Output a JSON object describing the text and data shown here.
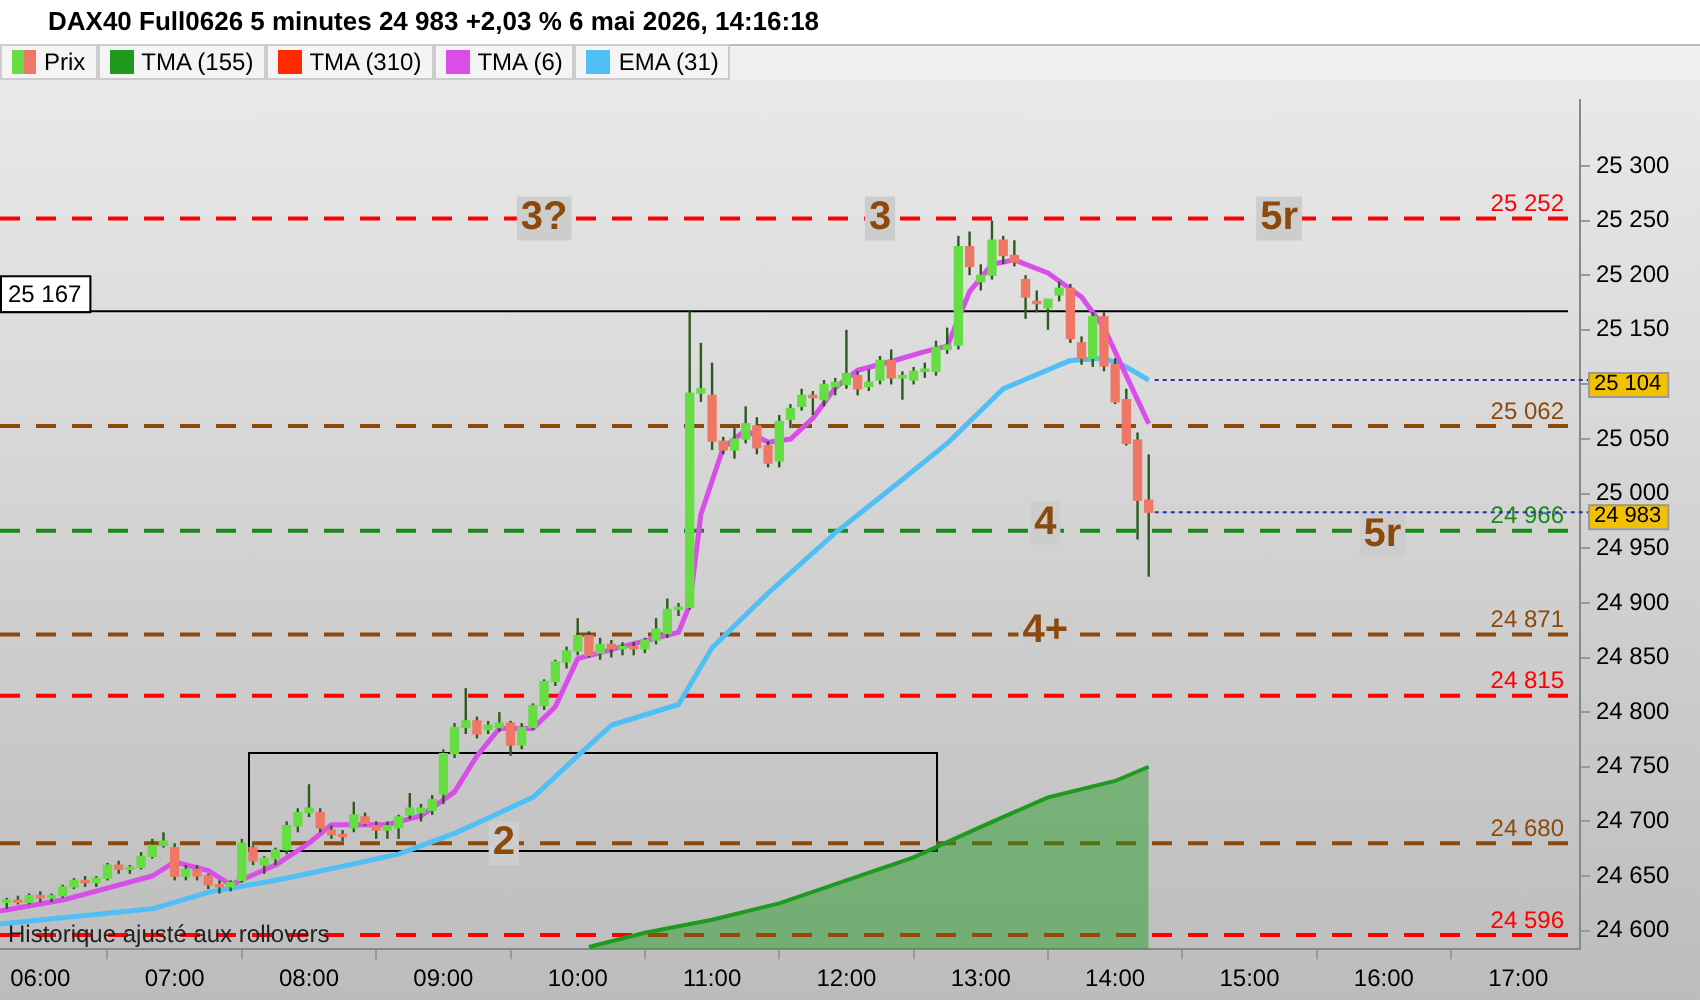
{
  "chart_data": {
    "type": "candlestick",
    "title": "DAX40 Full0626 5 minutes 24 983 +2,03 % 6 mai 2026, 14:16:18",
    "legend": "top left",
    "grid": false,
    "marker": "none",
    "xlim": [
      5.7,
      17.46
    ],
    "xticks": [
      {
        "value": 6,
        "label": "06:00"
      },
      {
        "value": 7,
        "label": "07:00"
      },
      {
        "value": 8,
        "label": "08:00"
      },
      {
        "value": 9,
        "label": "09:00"
      },
      {
        "value": 10,
        "label": "10:00"
      },
      {
        "value": 11,
        "label": "11:00"
      },
      {
        "value": 12,
        "label": "12:00"
      },
      {
        "value": 13,
        "label": "13:00"
      },
      {
        "value": 14,
        "label": "14:00"
      },
      {
        "value": 15,
        "label": "15:00"
      },
      {
        "value": 16,
        "label": "16:00"
      },
      {
        "value": 17,
        "label": "17:00"
      }
    ],
    "ylim": [
      24583,
      25360
    ],
    "yticks": [
      {
        "value": 24600,
        "label": "24 600"
      },
      {
        "value": 24650,
        "label": "24 650"
      },
      {
        "value": 24700,
        "label": "24 700"
      },
      {
        "value": 24750,
        "label": "24 750"
      },
      {
        "value": 24800,
        "label": "24 800"
      },
      {
        "value": 24850,
        "label": "24 850"
      },
      {
        "value": 24900,
        "label": "24 900"
      },
      {
        "value": 24950,
        "label": "24 950"
      },
      {
        "value": 25000,
        "label": "25 000"
      },
      {
        "value": 25050,
        "label": "25 050"
      },
      {
        "value": 25100,
        "label": null
      },
      {
        "value": 25150,
        "label": "25 150"
      },
      {
        "value": 25200,
        "label": "25 200"
      },
      {
        "value": 25250,
        "label": "25 250"
      },
      {
        "value": 25300,
        "label": "25 300"
      }
    ],
    "series": [
      {
        "name": "Prix",
        "type": "candlestick",
        "x": [
          5.75,
          5.8333,
          5.9167,
          6,
          6.0833,
          6.1667,
          6.25,
          6.3333,
          6.4167,
          6.5,
          6.5833,
          6.6667,
          6.75,
          6.8333,
          6.9167,
          7,
          7.0833,
          7.1667,
          7.25,
          7.3333,
          7.4167,
          7.5,
          7.5833,
          7.6667,
          7.75,
          7.8333,
          7.9167,
          8,
          8.0833,
          8.1667,
          8.25,
          8.3333,
          8.4167,
          8.5,
          8.5833,
          8.6667,
          8.75,
          8.8333,
          8.9167,
          9,
          9.0833,
          9.1667,
          9.25,
          9.3333,
          9.4167,
          9.5,
          9.5833,
          9.6667,
          9.75,
          9.8333,
          9.9167,
          10,
          10.0833,
          10.1667,
          10.25,
          10.3333,
          10.4167,
          10.5,
          10.5833,
          10.6667,
          10.75,
          10.8333,
          10.9167,
          11,
          11.0833,
          11.1667,
          11.25,
          11.3333,
          11.4167,
          11.5,
          11.5833,
          11.6667,
          11.75,
          11.8333,
          11.9167,
          12,
          12.0833,
          12.1667,
          12.25,
          12.3333,
          12.4167,
          12.5,
          12.5833,
          12.6667,
          12.75,
          12.8333,
          12.9167,
          13,
          13.0833,
          13.1667,
          13.25,
          13.3333,
          13.4167,
          13.5,
          13.5833,
          13.6667,
          13.75,
          13.8333,
          13.9167,
          14,
          14.0833,
          14.1667,
          14.25
        ],
        "ohlc": [
          [
            24626,
            24630,
            24620,
            24628
          ],
          [
            24628,
            24632,
            24624,
            24626
          ],
          [
            24626,
            24634,
            24624,
            24632
          ],
          [
            24632,
            24636,
            24626,
            24630
          ],
          [
            24630,
            24634,
            24626,
            24632
          ],
          [
            24632,
            24642,
            24630,
            24640
          ],
          [
            24640,
            24648,
            24638,
            24646
          ],
          [
            24646,
            24650,
            24640,
            24644
          ],
          [
            24644,
            24650,
            24640,
            24648
          ],
          [
            24648,
            24662,
            24646,
            24660
          ],
          [
            24660,
            24664,
            24652,
            24656
          ],
          [
            24656,
            24660,
            24652,
            24658
          ],
          [
            24658,
            24672,
            24656,
            24668
          ],
          [
            24668,
            24684,
            24666,
            24678
          ],
          [
            24678,
            24690,
            24676,
            24682
          ],
          [
            24676,
            24680,
            24646,
            24650
          ],
          [
            24650,
            24660,
            24646,
            24656
          ],
          [
            24656,
            24660,
            24646,
            24650
          ],
          [
            24650,
            24652,
            24638,
            24642
          ],
          [
            24642,
            24646,
            24634,
            24640
          ],
          [
            24640,
            24646,
            24636,
            24644
          ],
          [
            24646,
            24684,
            24644,
            24680
          ],
          [
            24676,
            24678,
            24660,
            24664
          ],
          [
            24660,
            24668,
            24652,
            24666
          ],
          [
            24666,
            24676,
            24660,
            24674
          ],
          [
            24674,
            24700,
            24670,
            24696
          ],
          [
            24696,
            24712,
            24690,
            24708
          ],
          [
            24708,
            24734,
            24704,
            24712
          ],
          [
            24708,
            24712,
            24690,
            24694
          ],
          [
            24692,
            24696,
            24684,
            24688
          ],
          [
            24688,
            24692,
            24682,
            24686
          ],
          [
            24694,
            24718,
            24690,
            24706
          ],
          [
            24704,
            24708,
            24696,
            24698
          ],
          [
            24696,
            24700,
            24684,
            24692
          ],
          [
            24692,
            24700,
            24684,
            24696
          ],
          [
            24694,
            24706,
            24684,
            24704
          ],
          [
            24706,
            24726,
            24702,
            24712
          ],
          [
            24708,
            24716,
            24700,
            24712
          ],
          [
            24710,
            24724,
            24706,
            24720
          ],
          [
            24725,
            24766,
            24716,
            24762
          ],
          [
            24762,
            24790,
            24758,
            24786
          ],
          [
            24786,
            24822,
            24780,
            24792
          ],
          [
            24792,
            24796,
            24776,
            24780
          ],
          [
            24784,
            24792,
            24780,
            24788
          ],
          [
            24786,
            24800,
            24782,
            24790
          ],
          [
            24790,
            24792,
            24760,
            24770
          ],
          [
            24770,
            24790,
            24766,
            24786
          ],
          [
            24786,
            24808,
            24784,
            24806
          ],
          [
            24806,
            24830,
            24802,
            24828
          ],
          [
            24828,
            24848,
            24824,
            24846
          ],
          [
            24846,
            24860,
            24840,
            24856
          ],
          [
            24856,
            24886,
            24852,
            24870
          ],
          [
            24870,
            24874,
            24850,
            24852
          ],
          [
            24854,
            24868,
            24848,
            24862
          ],
          [
            24862,
            24866,
            24850,
            24858
          ],
          [
            24858,
            24864,
            24852,
            24860
          ],
          [
            24860,
            24864,
            24852,
            24858
          ],
          [
            24858,
            24868,
            24854,
            24866
          ],
          [
            24866,
            24886,
            24862,
            24876
          ],
          [
            24872,
            24904,
            24868,
            24894
          ],
          [
            24894,
            24900,
            24888,
            24896
          ],
          [
            24896,
            25167,
            24894,
            25092
          ],
          [
            25092,
            25138,
            25084,
            25096
          ],
          [
            25090,
            25120,
            25040,
            25048
          ],
          [
            25048,
            25052,
            25036,
            25040
          ],
          [
            25040,
            25060,
            25032,
            25050
          ],
          [
            25050,
            25080,
            25046,
            25064
          ],
          [
            25062,
            25070,
            25036,
            25042
          ],
          [
            25044,
            25048,
            25024,
            25028
          ],
          [
            25030,
            25072,
            25024,
            25066
          ],
          [
            25068,
            25082,
            25060,
            25078
          ],
          [
            25080,
            25096,
            25076,
            25090
          ],
          [
            25090,
            25094,
            25072,
            25088
          ],
          [
            25086,
            25104,
            25080,
            25100
          ],
          [
            25098,
            25106,
            25090,
            25102
          ],
          [
            25100,
            25150,
            25096,
            25110
          ],
          [
            25108,
            25112,
            25090,
            25096
          ],
          [
            25098,
            25114,
            25094,
            25102
          ],
          [
            25104,
            25126,
            25100,
            25122
          ],
          [
            25122,
            25132,
            25100,
            25106
          ],
          [
            25106,
            25112,
            25086,
            25108
          ],
          [
            25104,
            25116,
            25100,
            25112
          ],
          [
            25112,
            25120,
            25106,
            25114
          ],
          [
            25112,
            25140,
            25108,
            25134
          ],
          [
            25132,
            25152,
            25128,
            25136
          ],
          [
            25136,
            25236,
            25132,
            25226
          ],
          [
            25226,
            25240,
            25200,
            25208
          ],
          [
            25194,
            25210,
            25186,
            25200
          ],
          [
            25200,
            25250,
            25196,
            25232
          ],
          [
            25232,
            25236,
            25210,
            25218
          ],
          [
            25218,
            25232,
            25208,
            25212
          ],
          [
            25196,
            25200,
            25160,
            25180
          ],
          [
            25176,
            25186,
            25166,
            25174
          ],
          [
            25170,
            25178,
            25150,
            25178
          ],
          [
            25182,
            25194,
            25176,
            25188
          ],
          [
            25188,
            25192,
            25138,
            25142
          ],
          [
            25138,
            25144,
            25118,
            25124
          ],
          [
            25124,
            25166,
            25116,
            25162
          ],
          [
            25162,
            25166,
            25112,
            25117
          ],
          [
            25118,
            25124,
            25082,
            25084
          ],
          [
            25086,
            25096,
            25044,
            25046
          ],
          [
            25049,
            25056,
            24958,
            24994
          ],
          [
            24994,
            25036,
            24924,
            24983
          ]
        ],
        "colors": [
          "#66dd44",
          "#ee7766",
          "#66dd44",
          "#ee7766",
          "#66dd44",
          "#66dd44",
          "#66dd44",
          "#ee7766",
          "#66dd44",
          "#66dd44",
          "#ee7766",
          "#66dd44",
          "#66dd44",
          "#66dd44",
          "#66dd44",
          "#ee7766",
          "#66dd44",
          "#ee7766",
          "#ee7766",
          "#ee7766",
          "#66dd44",
          "#66dd44",
          "#ee7766",
          "#66dd44",
          "#66dd44",
          "#66dd44",
          "#66dd44",
          "#66dd44",
          "#ee7766",
          "#ee7766",
          "#ee7766",
          "#66dd44",
          "#ee7766",
          "#ee7766",
          "#66dd44",
          "#66dd44",
          "#66dd44",
          "#66dd44",
          "#66dd44",
          "#66dd44",
          "#66dd44",
          "#66dd44",
          "#ee7766",
          "#66dd44",
          "#66dd44",
          "#ee7766",
          "#66dd44",
          "#66dd44",
          "#66dd44",
          "#66dd44",
          "#66dd44",
          "#66dd44",
          "#ee7766",
          "#66dd44",
          "#ee7766",
          "#66dd44",
          "#ee7766",
          "#66dd44",
          "#66dd44",
          "#66dd44",
          "#66dd44",
          "#66dd44",
          "#66dd44",
          "#ee7766",
          "#ee7766",
          "#66dd44",
          "#66dd44",
          "#ee7766",
          "#ee7766",
          "#66dd44",
          "#66dd44",
          "#66dd44",
          "#ee7766",
          "#66dd44",
          "#66dd44",
          "#66dd44",
          "#ee7766",
          "#66dd44",
          "#66dd44",
          "#ee7766",
          "#66dd44",
          "#66dd44",
          "#66dd44",
          "#66dd44",
          "#66dd44",
          "#66dd44",
          "#ee7766",
          "#66dd44",
          "#66dd44",
          "#ee7766",
          "#ee7766",
          "#ee7766",
          "#ee7766",
          "#66dd44",
          "#66dd44",
          "#ee7766",
          "#ee7766",
          "#66dd44",
          "#ee7766",
          "#ee7766",
          "#ee7766",
          "#ee7766",
          "#ee7766"
        ]
      },
      {
        "name": "TMA (155)",
        "type": "area",
        "color": "#1e9a1e",
        "x": [
          10.0833,
          10.5,
          11,
          11.5,
          12,
          12.5,
          13,
          13.5,
          14,
          14.25
        ],
        "values": [
          24585,
          24598,
          24610,
          24625,
          24646,
          24667,
          24695,
          24722,
          24737,
          24750
        ]
      },
      {
        "name": "TMA (310)",
        "type": "line",
        "color": "#ff2a00"
      },
      {
        "name": "TMA (6)",
        "type": "line",
        "color": "#d94de8",
        "x": [
          5.7,
          6.1667,
          6.8333,
          7,
          7.25,
          7.4167,
          7.75,
          8,
          8.1667,
          8.5833,
          8.8333,
          9.0833,
          9.25,
          9.4167,
          9.6667,
          9.8333,
          10,
          10.3333,
          10.75,
          10.8333,
          10.9167,
          11.0833,
          11.25,
          11.4167,
          11.5833,
          11.75,
          11.9167,
          12.0833,
          12.3333,
          12.5833,
          12.75,
          12.9167,
          13.0833,
          13.25,
          13.5,
          13.75,
          13.9167,
          14.0833,
          14.25
        ],
        "values": [
          24618,
          24628,
          24650,
          24663,
          24655,
          24642,
          24660,
          24680,
          24697,
          24697,
          24705,
          24727,
          24760,
          24785,
          24785,
          24805,
          24849,
          24860,
          24873,
          24898,
          24981,
          25042,
          25058,
          25047,
          25050,
          25069,
          25097,
          25113,
          25121,
          25130,
          25135,
          25185,
          25210,
          25214,
          25202,
          25180,
          25152,
          25108,
          25064
        ]
      },
      {
        "name": "EMA (31)",
        "type": "line",
        "color": "#4fbff5",
        "x": [
          5.7,
          6.8333,
          7.25,
          7.8333,
          8.6667,
          9.0833,
          9.6667,
          10,
          10.25,
          10.75,
          11,
          11.4167,
          11.9167,
          12.4167,
          12.75,
          13.1667,
          13.6667,
          13.9167,
          14.0833,
          14.25
        ],
        "values": [
          24606,
          24620,
          24635,
          24648,
          24670,
          24689,
          24722,
          24760,
          24788,
          24807,
          24859,
          24909,
          24964,
          25013,
          25046,
          25096,
          25122,
          25124,
          25116,
          25104
        ]
      }
    ],
    "ref_lines": [
      {
        "axis": "y",
        "value": 25252,
        "label": "25 252",
        "color": "#ff0000",
        "line_style": "dashed"
      },
      {
        "axis": "y",
        "value": 25167,
        "label": "25 167",
        "color": "#000000",
        "line_style": "solid"
      },
      {
        "axis": "y",
        "value": 25062,
        "label": "25 062",
        "color": "#8b4a0c",
        "line_style": "dashed"
      },
      {
        "axis": "y",
        "value": 24966,
        "label": "24 966",
        "color": "#1a8a1a",
        "line_style": "dashed"
      },
      {
        "axis": "y",
        "value": 24871,
        "label": "24 871",
        "color": "#8b4a0c",
        "line_style": "dashed"
      },
      {
        "axis": "y",
        "value": 24815,
        "label": "24 815",
        "color": "#ff0000",
        "line_style": "dashed"
      },
      {
        "axis": "y",
        "value": 24680,
        "label": "24 680",
        "color": "#8b4a0c",
        "line_style": "dashed"
      },
      {
        "axis": "y",
        "value": 24596,
        "label": "24 596",
        "color": "#ff0000",
        "line_style": "dashed"
      }
    ],
    "annotations": [
      {
        "text": "3?",
        "x": 9.75,
        "y": 25252
      },
      {
        "text": "3",
        "x": 12.25,
        "y": 25252
      },
      {
        "text": "5r",
        "x": 15.22,
        "y": 25252
      },
      {
        "text": "4",
        "x": 13.48,
        "y": 24973
      },
      {
        "text": "5r",
        "x": 15.99,
        "y": 24962
      },
      {
        "text": "4+",
        "x": 13.48,
        "y": 24874
      },
      {
        "text": "2",
        "x": 9.45,
        "y": 24680
      },
      {
        "text": "25 104",
        "x": 14.25,
        "y": 25104
      },
      {
        "text": "24 983",
        "x": 14.25,
        "y": 24983
      },
      "Historique ajusté aux rollovers"
    ]
  }
}
